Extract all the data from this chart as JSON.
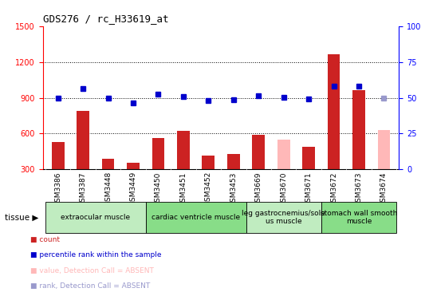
{
  "title": "GDS276 / rc_H33619_at",
  "samples": [
    "GSM3386",
    "GSM3387",
    "GSM3448",
    "GSM3449",
    "GSM3450",
    "GSM3451",
    "GSM3452",
    "GSM3453",
    "GSM3669",
    "GSM3670",
    "GSM3671",
    "GSM3672",
    "GSM3673",
    "GSM3674"
  ],
  "bar_values": [
    530,
    790,
    390,
    355,
    565,
    625,
    415,
    430,
    590,
    null,
    490,
    1265,
    965,
    null
  ],
  "bar_absent_values": [
    null,
    null,
    null,
    null,
    null,
    null,
    null,
    null,
    null,
    550,
    null,
    null,
    null,
    630
  ],
  "bar_color": "#cc2222",
  "bar_absent_color": "#ffb8b8",
  "scatter_values_left": [
    900,
    975,
    895,
    860,
    930,
    910,
    875,
    885,
    920,
    905,
    890,
    1000,
    1000,
    null
  ],
  "scatter_absent_values_left": [
    null,
    null,
    null,
    null,
    null,
    null,
    null,
    null,
    null,
    null,
    null,
    null,
    null,
    900
  ],
  "scatter_color": "#0000cc",
  "scatter_absent_color": "#9999cc",
  "ylim_left": [
    300,
    1500
  ],
  "ylim_right": [
    0,
    100
  ],
  "yticks_left": [
    300,
    600,
    900,
    1200,
    1500
  ],
  "yticks_right": [
    0,
    25,
    50,
    75,
    100
  ],
  "dotted_lines": [
    600,
    900,
    1200
  ],
  "group_defs": [
    {
      "start": 0,
      "end": 3,
      "label": "extraocular muscle",
      "color": "#c0ecc0"
    },
    {
      "start": 4,
      "end": 7,
      "label": "cardiac ventricle muscle",
      "color": "#88dd88"
    },
    {
      "start": 8,
      "end": 10,
      "label": "leg gastrocnemius/sole\nus muscle",
      "color": "#c0ecc0"
    },
    {
      "start": 11,
      "end": 13,
      "label": "stomach wall smooth\nmuscle",
      "color": "#88dd88"
    }
  ],
  "legend_items": [
    {
      "label": "count",
      "color": "#cc2222"
    },
    {
      "label": "percentile rank within the sample",
      "color": "#0000cc"
    },
    {
      "label": "value, Detection Call = ABSENT",
      "color": "#ffb8b8"
    },
    {
      "label": "rank, Detection Call = ABSENT",
      "color": "#9999cc"
    }
  ],
  "xticklabel_bg": "#d8d8d8",
  "bar_width": 0.5
}
